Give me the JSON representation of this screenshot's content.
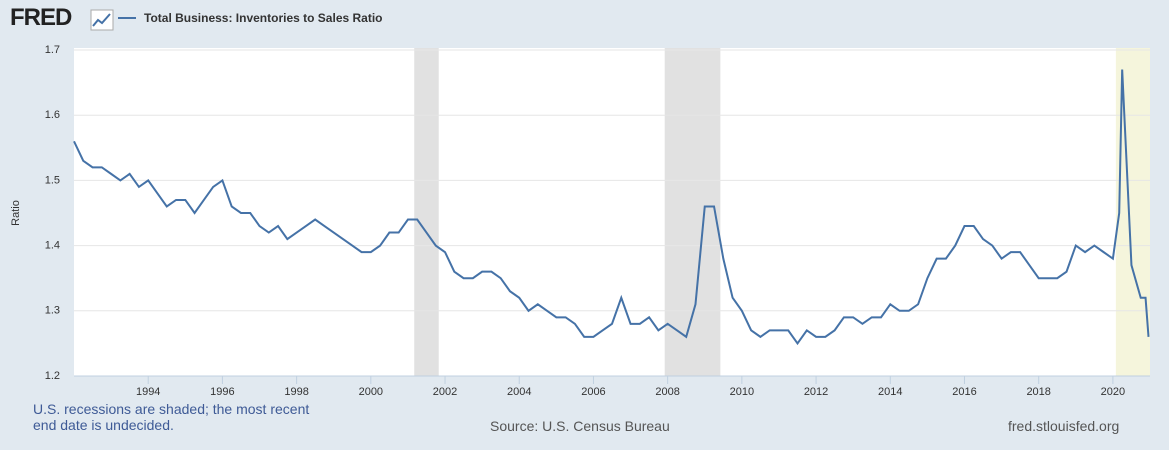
{
  "logo": "FRED",
  "chart_data": {
    "type": "line",
    "y_label": "Ratio",
    "series": [
      {
        "name": "Total Business: Inventories to Sales Ratio",
        "color": "#4572a7",
        "values": [
          1.56,
          1.53,
          1.52,
          1.52,
          1.51,
          1.5,
          1.51,
          1.49,
          1.5,
          1.48,
          1.46,
          1.47,
          1.47,
          1.45,
          1.47,
          1.49,
          1.5,
          1.46,
          1.45,
          1.45,
          1.43,
          1.42,
          1.43,
          1.41,
          1.42,
          1.43,
          1.44,
          1.43,
          1.42,
          1.41,
          1.4,
          1.39,
          1.39,
          1.4,
          1.42,
          1.42,
          1.44,
          1.44,
          1.42,
          1.4,
          1.39,
          1.36,
          1.35,
          1.35,
          1.36,
          1.36,
          1.35,
          1.33,
          1.32,
          1.3,
          1.31,
          1.3,
          1.29,
          1.29,
          1.28,
          1.26,
          1.26,
          1.27,
          1.28,
          1.32,
          1.28,
          1.28,
          1.29,
          1.27,
          1.28,
          1.27,
          1.26,
          1.31,
          1.46,
          1.46,
          1.38,
          1.32,
          1.3,
          1.27,
          1.26,
          1.27,
          1.27,
          1.27,
          1.25,
          1.27,
          1.26,
          1.26,
          1.27,
          1.29,
          1.29,
          1.28,
          1.29,
          1.29,
          1.31,
          1.3,
          1.3,
          1.31,
          1.35,
          1.38,
          1.38,
          1.4,
          1.43,
          1.43,
          1.41,
          1.4,
          1.38,
          1.39,
          1.39,
          1.37,
          1.35,
          1.35,
          1.35,
          1.36,
          1.4,
          1.39,
          1.4,
          1.39,
          1.38,
          1.45,
          1.67,
          1.37,
          1.32,
          1.32,
          1.26
        ]
      }
    ],
    "x": [
      1992,
      1992.25,
      1992.5,
      1992.75,
      1993,
      1993.25,
      1993.5,
      1993.75,
      1994,
      1994.25,
      1994.5,
      1994.75,
      1995,
      1995.25,
      1995.5,
      1995.75,
      1996,
      1996.25,
      1996.5,
      1996.75,
      1997,
      1997.25,
      1997.5,
      1997.75,
      1998,
      1998.25,
      1998.5,
      1998.75,
      1999,
      1999.25,
      1999.5,
      1999.75,
      2000,
      2000.25,
      2000.5,
      2000.75,
      2001,
      2001.25,
      2001.5,
      2001.75,
      2002,
      2002.25,
      2002.5,
      2002.75,
      2003,
      2003.25,
      2003.5,
      2003.75,
      2004,
      2004.25,
      2004.5,
      2004.75,
      2005,
      2005.25,
      2005.5,
      2005.75,
      2006,
      2006.25,
      2006.5,
      2006.75,
      2007,
      2007.25,
      2007.5,
      2007.75,
      2008,
      2008.25,
      2008.5,
      2008.75,
      2009,
      2009.25,
      2009.5,
      2009.75,
      2010,
      2010.25,
      2010.5,
      2010.75,
      2011,
      2011.25,
      2011.5,
      2011.75,
      2012,
      2012.25,
      2012.5,
      2012.75,
      2013,
      2013.25,
      2013.5,
      2013.75,
      2014,
      2014.25,
      2014.5,
      2014.75,
      2015,
      2015.25,
      2015.5,
      2015.75,
      2016,
      2016.25,
      2016.5,
      2016.75,
      2017,
      2017.25,
      2017.5,
      2017.75,
      2018,
      2018.25,
      2018.5,
      2018.75,
      2019,
      2019.25,
      2019.5,
      2019.75,
      2020,
      2020.17,
      2020.25,
      2020.5,
      2020.75,
      2020.88,
      2020.96
    ],
    "xlim": [
      1992,
      2021
    ],
    "xticks": [
      1994,
      1996,
      1998,
      2000,
      2002,
      2004,
      2006,
      2008,
      2010,
      2012,
      2014,
      2016,
      2018,
      2020
    ],
    "ylim": [
      1.2,
      1.7
    ],
    "yticks": [
      1.2,
      1.3,
      1.4,
      1.5,
      1.6,
      1.7
    ],
    "grid": true,
    "recessions": [
      {
        "start": 2001.17,
        "end": 2001.83,
        "color": "#e1e1e1"
      },
      {
        "start": 2007.92,
        "end": 2009.42,
        "color": "#e1e1e1"
      },
      {
        "start": 2020.08,
        "end": 2021,
        "color": "#f5f5dc"
      }
    ],
    "note": "U.S. recessions are shaded; the most recent end date is undecided.",
    "source": "Source: U.S. Census Bureau",
    "url": "fred.stlouisfed.org"
  }
}
